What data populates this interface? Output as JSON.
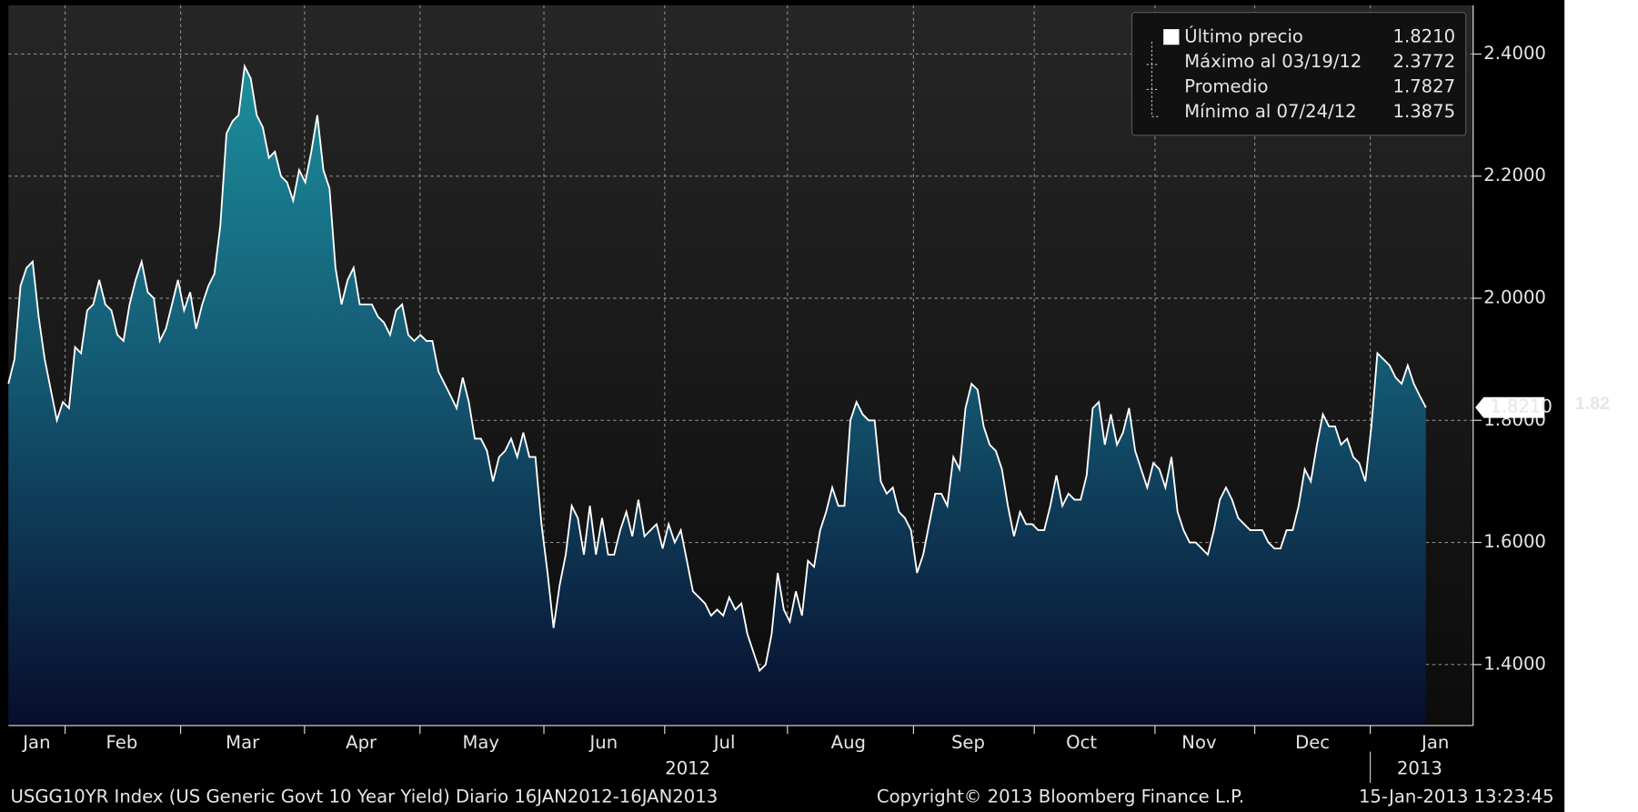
{
  "chart_data": {
    "type": "area",
    "legend": [
      {
        "text": "Último precio",
        "value": "1.8210"
      },
      {
        "text": "Máximo al 03/19/12",
        "value": "2.3772"
      },
      {
        "text": "Promedio",
        "value": "1.7827"
      },
      {
        "text": "Mínimo al 07/24/12",
        "value": "1.3875"
      }
    ],
    "values": [
      1.86,
      1.9,
      2.02,
      2.05,
      2.06,
      1.97,
      1.9,
      1.85,
      1.8,
      1.83,
      1.82,
      1.92,
      1.91,
      1.98,
      1.99,
      2.03,
      1.99,
      1.98,
      1.94,
      1.93,
      1.99,
      2.03,
      2.06,
      2.01,
      2.0,
      1.93,
      1.95,
      1.99,
      2.03,
      1.98,
      2.01,
      1.95,
      1.99,
      2.02,
      2.04,
      2.12,
      2.27,
      2.29,
      2.3,
      2.38,
      2.36,
      2.3,
      2.28,
      2.23,
      2.24,
      2.2,
      2.19,
      2.16,
      2.21,
      2.19,
      2.24,
      2.3,
      2.21,
      2.18,
      2.05,
      1.99,
      2.03,
      2.05,
      1.99,
      1.99,
      1.99,
      1.97,
      1.96,
      1.94,
      1.98,
      1.99,
      1.94,
      1.93,
      1.94,
      1.93,
      1.93,
      1.88,
      1.86,
      1.84,
      1.82,
      1.87,
      1.83,
      1.77,
      1.77,
      1.75,
      1.7,
      1.74,
      1.75,
      1.77,
      1.74,
      1.78,
      1.74,
      1.74,
      1.63,
      1.55,
      1.46,
      1.53,
      1.58,
      1.66,
      1.64,
      1.58,
      1.66,
      1.58,
      1.64,
      1.58,
      1.58,
      1.62,
      1.65,
      1.61,
      1.67,
      1.61,
      1.62,
      1.63,
      1.59,
      1.63,
      1.6,
      1.62,
      1.57,
      1.52,
      1.51,
      1.5,
      1.48,
      1.49,
      1.48,
      1.51,
      1.49,
      1.5,
      1.45,
      1.42,
      1.39,
      1.4,
      1.45,
      1.55,
      1.49,
      1.47,
      1.52,
      1.48,
      1.57,
      1.56,
      1.62,
      1.65,
      1.69,
      1.66,
      1.66,
      1.8,
      1.83,
      1.81,
      1.8,
      1.8,
      1.7,
      1.68,
      1.69,
      1.65,
      1.64,
      1.62,
      1.55,
      1.58,
      1.63,
      1.68,
      1.68,
      1.66,
      1.74,
      1.72,
      1.82,
      1.86,
      1.85,
      1.79,
      1.76,
      1.75,
      1.72,
      1.66,
      1.61,
      1.65,
      1.63,
      1.63,
      1.62,
      1.62,
      1.66,
      1.71,
      1.66,
      1.68,
      1.67,
      1.67,
      1.71,
      1.82,
      1.83,
      1.76,
      1.81,
      1.76,
      1.78,
      1.82,
      1.75,
      1.72,
      1.69,
      1.73,
      1.72,
      1.69,
      1.74,
      1.65,
      1.62,
      1.6,
      1.6,
      1.59,
      1.58,
      1.62,
      1.67,
      1.69,
      1.67,
      1.64,
      1.63,
      1.62,
      1.62,
      1.62,
      1.6,
      1.59,
      1.59,
      1.62,
      1.62,
      1.66,
      1.72,
      1.7,
      1.76,
      1.81,
      1.79,
      1.79,
      1.76,
      1.77,
      1.74,
      1.73,
      1.7,
      1.79,
      1.91,
      1.9,
      1.89,
      1.87,
      1.86,
      1.89,
      1.86,
      1.84,
      1.821
    ],
    "ylim": [
      1.3,
      2.48
    ],
    "yticks": [
      {
        "value": 1.4,
        "label": "1.4000"
      },
      {
        "value": 1.6,
        "label": "1.6000"
      },
      {
        "value": 1.8,
        "label": "1.8000"
      },
      {
        "value": 2.0,
        "label": "2.0000"
      },
      {
        "value": 2.2,
        "label": "2.2000"
      },
      {
        "value": 2.4,
        "label": "2.4000"
      }
    ],
    "months": [
      "Jan",
      "Feb",
      "Mar",
      "Apr",
      "May",
      "Jun",
      "Jul",
      "Aug",
      "Sep",
      "Oct",
      "Nov",
      "Dec",
      "Jan"
    ],
    "years": [
      "2012",
      "2013"
    ],
    "last_label": "1.8210",
    "side_label": "1.82",
    "grid": true,
    "footer_left": "USGG10YR Index (US Generic Govt 10 Year Yield)  Diario 16JAN2012-16JAN2013",
    "footer_mid": "Copyright© 2013 Bloomberg Finance L.P.",
    "footer_right": "15-Jan-2013 13:23:45"
  }
}
